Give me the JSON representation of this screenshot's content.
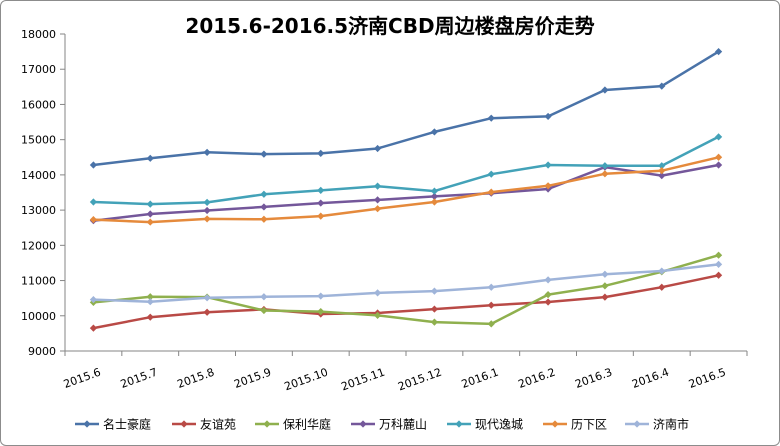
{
  "chart_data": {
    "type": "line",
    "title": "2015.6-2016.5济南CBD周边楼盘房价走势",
    "xlabel": "",
    "ylabel": "",
    "categories": [
      "2015.6",
      "2015.7",
      "2015.8",
      "2015.9",
      "2015.10",
      "2015.11",
      "2015.12",
      "2016.1",
      "2016.2",
      "2016.3",
      "2016.4",
      "2016.5"
    ],
    "ylim": [
      9000,
      18000
    ],
    "yticks": [
      9000,
      10000,
      11000,
      12000,
      13000,
      14000,
      15000,
      16000,
      17000,
      18000
    ],
    "grid": false,
    "legend_position": "bottom",
    "series": [
      {
        "name": "名士豪庭",
        "color": "#4a73a8",
        "values": [
          14280,
          14470,
          14640,
          14590,
          14610,
          14750,
          15220,
          15610,
          15660,
          16410,
          16520,
          17500
        ]
      },
      {
        "name": "友谊苑",
        "color": "#b94a46",
        "values": [
          9650,
          9960,
          10100,
          10180,
          10050,
          10080,
          10190,
          10300,
          10390,
          10530,
          10810,
          11150
        ]
      },
      {
        "name": "保利华庭",
        "color": "#8fb04e",
        "values": [
          10380,
          10540,
          10530,
          10150,
          10120,
          10010,
          9820,
          9770,
          10600,
          10850,
          11250,
          11720
        ]
      },
      {
        "name": "万科麓山",
        "color": "#74579a",
        "values": [
          12700,
          12890,
          12990,
          13090,
          13200,
          13290,
          13390,
          13480,
          13600,
          14220,
          13980,
          14280
        ]
      },
      {
        "name": "现代逸城",
        "color": "#43a2b8",
        "values": [
          13230,
          13170,
          13220,
          13450,
          13560,
          13680,
          13540,
          14020,
          14280,
          14260,
          14260,
          15080
        ]
      },
      {
        "name": "历下区",
        "color": "#e58a3c",
        "values": [
          12730,
          12660,
          12750,
          12740,
          12830,
          13040,
          13230,
          13510,
          13690,
          14030,
          14120,
          14500
        ]
      },
      {
        "name": "济南市",
        "color": "#9fb4d9",
        "values": [
          10460,
          10400,
          10510,
          10540,
          10560,
          10650,
          10700,
          10810,
          11020,
          11180,
          11270,
          11460
        ]
      }
    ]
  }
}
